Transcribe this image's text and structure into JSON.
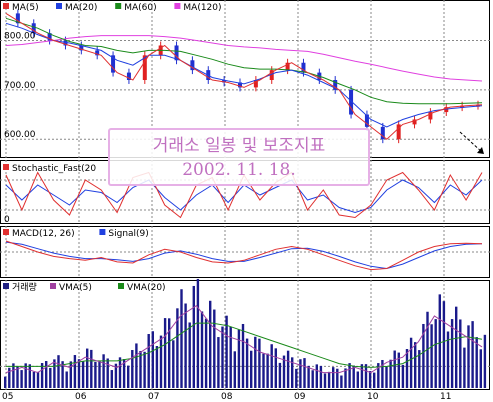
{
  "banner": {
    "title": "거래소 일봉 및 보조지표",
    "date": "2002. 11. 18."
  },
  "legends": {
    "price": [
      {
        "label": "MA(5)",
        "color": "#e03030"
      },
      {
        "label": "MA(20)",
        "color": "#2040e0"
      },
      {
        "label": "MA(60)",
        "color": "#1a8a1a"
      },
      {
        "label": "MA(120)",
        "color": "#e040e0"
      }
    ],
    "stoch": [
      {
        "label": "Stochastic_Fast(20",
        "color": "#e03030"
      }
    ],
    "macd": [
      {
        "label": "MACD(12, 26)",
        "color": "#e03030"
      },
      {
        "label": "Signal(9)",
        "color": "#2040e0"
      }
    ],
    "volume": [
      {
        "label": "거래량",
        "color": "#202080"
      },
      {
        "label": "VMA(5)",
        "color": "#a040a0"
      },
      {
        "label": "VMA(20)",
        "color": "#1a8a1a"
      }
    ]
  },
  "chart_data": {
    "type": "line",
    "price_axis_ticks": [
      "800.00",
      "700.00",
      "600.00"
    ],
    "price_axis_values": [
      800,
      700,
      600
    ],
    "stoch_axis_ticks": [
      "0"
    ],
    "month_ticks": [
      "05",
      "06",
      "07",
      "08",
      "09",
      "10",
      "11"
    ],
    "price_ylim": [
      570,
      870
    ],
    "ma5": [
      855,
      835,
      815,
      800,
      790,
      780,
      770,
      735,
      720,
      770,
      790,
      760,
      740,
      720,
      715,
      705,
      720,
      740,
      755,
      735,
      720,
      700,
      650,
      625,
      600,
      630,
      640,
      655,
      665,
      668,
      670
    ],
    "ma20": [
      835,
      825,
      812,
      800,
      795,
      788,
      780,
      760,
      750,
      770,
      770,
      760,
      742,
      725,
      718,
      712,
      722,
      735,
      740,
      730,
      715,
      700,
      670,
      640,
      625,
      640,
      650,
      658,
      662,
      665,
      668
    ],
    "ma60": [
      845,
      835,
      825,
      810,
      798,
      790,
      788,
      780,
      775,
      780,
      780,
      778,
      770,
      762,
      752,
      745,
      742,
      742,
      740,
      735,
      725,
      712,
      700,
      685,
      676,
      673,
      672,
      672,
      672,
      673,
      674
    ],
    "ma120": [
      790,
      792,
      796,
      800,
      805,
      808,
      810,
      810,
      810,
      810,
      808,
      805,
      800,
      795,
      790,
      787,
      785,
      782,
      780,
      778,
      772,
      765,
      758,
      752,
      745,
      738,
      732,
      726,
      722,
      720,
      718
    ],
    "stoch_fast": [
      90,
      20,
      95,
      40,
      10,
      80,
      60,
      15,
      85,
      95,
      30,
      5,
      70,
      85,
      20,
      90,
      40,
      75,
      95,
      20,
      60,
      10,
      5,
      30,
      80,
      95,
      60,
      20,
      90,
      40,
      95
    ],
    "stoch_slow": [
      70,
      40,
      70,
      50,
      30,
      60,
      55,
      35,
      65,
      80,
      45,
      20,
      50,
      70,
      35,
      70,
      50,
      65,
      80,
      40,
      50,
      25,
      15,
      25,
      60,
      80,
      65,
      35,
      70,
      50,
      80
    ],
    "macd": [
      20,
      10,
      0,
      -8,
      -12,
      -15,
      -10,
      -18,
      -20,
      -5,
      5,
      0,
      -10,
      -18,
      -20,
      -15,
      -5,
      5,
      10,
      5,
      -5,
      -15,
      -25,
      -32,
      -30,
      -15,
      0,
      10,
      15,
      16,
      15
    ],
    "signal": [
      18,
      14,
      6,
      -2,
      -8,
      -12,
      -12,
      -14,
      -17,
      -12,
      -2,
      2,
      -4,
      -12,
      -17,
      -17,
      -10,
      -2,
      6,
      7,
      1,
      -8,
      -18,
      -26,
      -30,
      -22,
      -10,
      2,
      10,
      14,
      15
    ],
    "volume": [
      3,
      4,
      3,
      5,
      4,
      6,
      5,
      4,
      6,
      8,
      10,
      14,
      16,
      12,
      10,
      9,
      7,
      6,
      5,
      4,
      3,
      3,
      4,
      3,
      5,
      6,
      9,
      14,
      12,
      10,
      8
    ],
    "vma20": [
      4,
      4,
      4,
      4,
      4.5,
      5,
      5,
      5,
      5.5,
      6.5,
      8,
      10,
      12,
      12,
      11.5,
      10.5,
      9.5,
      8.5,
      7.5,
      6.5,
      5.5,
      4.5,
      4,
      3.8,
      4,
      4.5,
      6,
      8,
      9,
      9.5,
      9
    ]
  }
}
